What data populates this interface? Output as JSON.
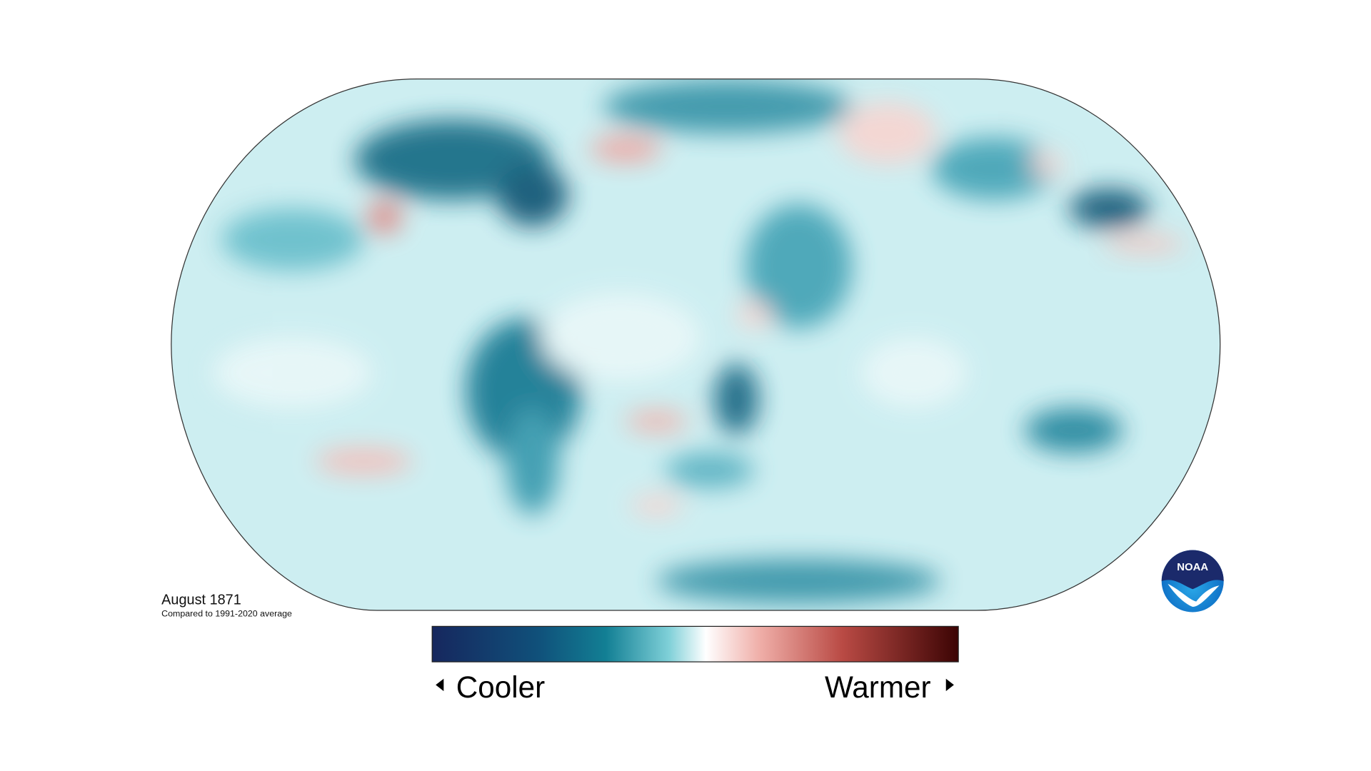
{
  "map": {
    "title": "August 1871",
    "subtitle": "Compared to 1991-2020 average"
  },
  "legend": {
    "low_label": "Cooler",
    "high_label": "Warmer"
  },
  "logo": {
    "text": "NOAA"
  }
}
